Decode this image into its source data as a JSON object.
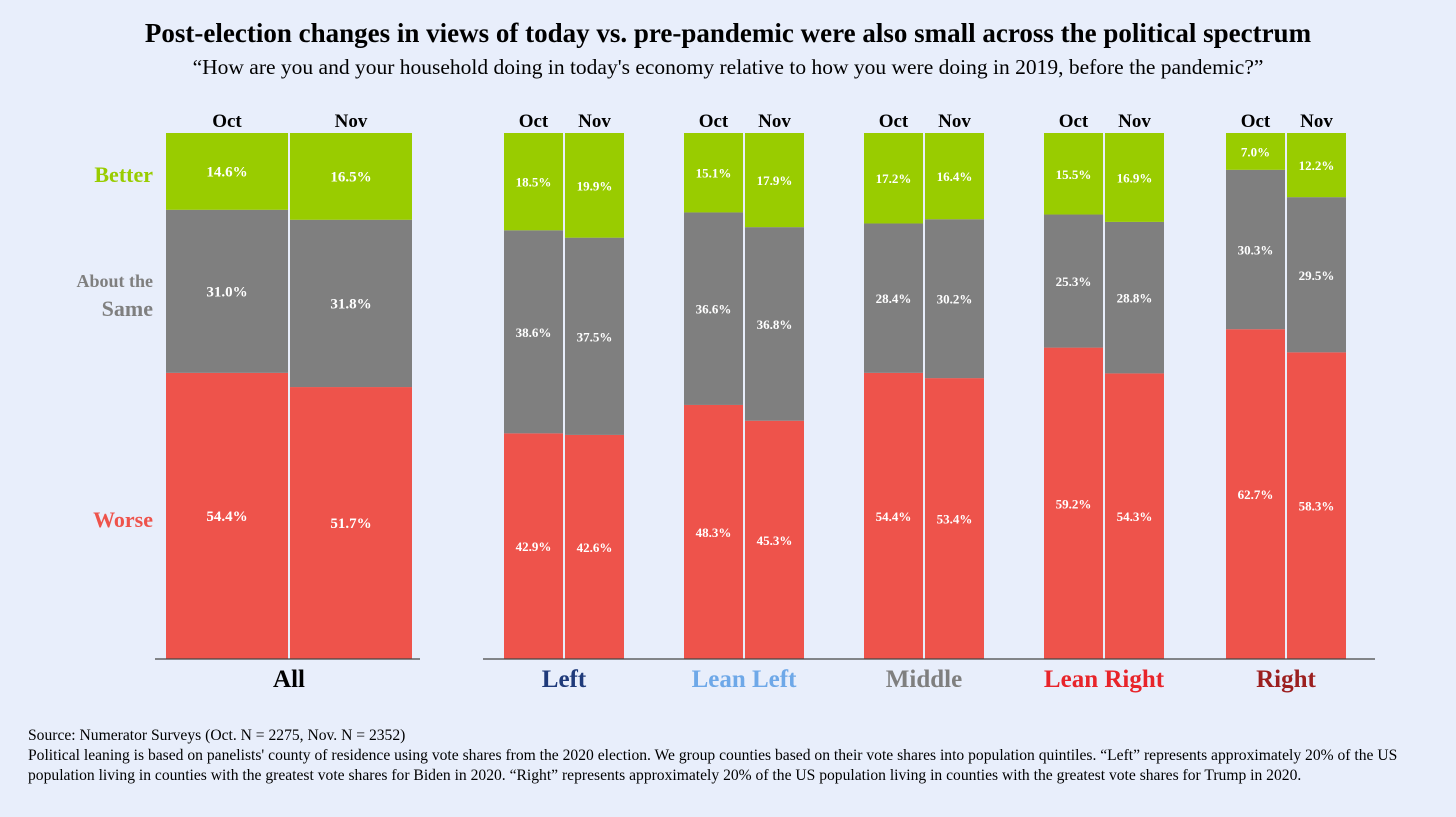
{
  "title": "Post-election changes in views of today vs. pre-pandemic were also small across the political spectrum",
  "subtitle": "“How are you and your household doing in today's economy relative to how you were doing in 2019, before the pandemic?”",
  "footnote": {
    "source": "Source: Numerator Surveys  (Oct. N = 2275, Nov. N = 2352)",
    "note": "Political leaning is based on panelists' county of residence using vote shares from the 2020 election. We group counties based on their vote shares into population quintiles. “Left” represents approximately 20% of the US population living in counties with the greatest vote shares for Biden in 2020. “Right” represents approximately 20% of the US population living in counties with the greatest vote shares for Trump in 2020."
  },
  "chart_data": {
    "type": "bar",
    "stacked": true,
    "normalized_percent": true,
    "bar_labels": [
      "Oct",
      "Nov"
    ],
    "stack_order_bottom_to_top": [
      "Worse",
      "About the Same",
      "Better"
    ],
    "category_legend": [
      {
        "name": "Better",
        "lines": [
          "Better"
        ],
        "color": "#99cc00"
      },
      {
        "name": "About the Same",
        "lines": [
          "About the",
          "Same"
        ],
        "color": "#7f7f7f"
      },
      {
        "name": "Worse",
        "lines": [
          "Worse"
        ],
        "color": "#ee534b"
      }
    ],
    "groups": [
      {
        "name": "All",
        "label_color": "#000000",
        "bars": [
          {
            "label": "Oct",
            "better": 14.6,
            "same": 31.0,
            "worse": 54.4
          },
          {
            "label": "Nov",
            "better": 16.5,
            "same": 31.8,
            "worse": 51.7
          }
        ]
      },
      {
        "name": "Left",
        "label_color": "#1f3a7a",
        "bars": [
          {
            "label": "Oct",
            "better": 18.5,
            "same": 38.6,
            "worse": 42.9
          },
          {
            "label": "Nov",
            "better": 19.9,
            "same": 37.5,
            "worse": 42.6
          }
        ]
      },
      {
        "name": "Lean Left",
        "label_color": "#6ea8e8",
        "bars": [
          {
            "label": "Oct",
            "better": 15.1,
            "same": 36.6,
            "worse": 48.3
          },
          {
            "label": "Nov",
            "better": 17.9,
            "same": 36.8,
            "worse": 45.3
          }
        ]
      },
      {
        "name": "Middle",
        "label_color": "#7f7f7f",
        "bars": [
          {
            "label": "Oct",
            "better": 17.2,
            "same": 28.4,
            "worse": 54.4
          },
          {
            "label": "Nov",
            "better": 16.4,
            "same": 30.2,
            "worse": 53.4
          }
        ]
      },
      {
        "name": "Lean Right",
        "label_color": "#e8242a",
        "bars": [
          {
            "label": "Oct",
            "better": 15.5,
            "same": 25.3,
            "worse": 59.2
          },
          {
            "label": "Nov",
            "better": 16.9,
            "same": 28.8,
            "worse": 54.3
          }
        ]
      },
      {
        "name": "Right",
        "label_color": "#9c1f1f",
        "bars": [
          {
            "label": "Oct",
            "better": 7.0,
            "same": 30.3,
            "worse": 62.7
          },
          {
            "label": "Nov",
            "better": 12.2,
            "same": 29.5,
            "worse": 58.3
          }
        ]
      }
    ],
    "ylim": [
      0,
      100
    ],
    "grid": false,
    "value_format": "one decimal with % sign"
  }
}
